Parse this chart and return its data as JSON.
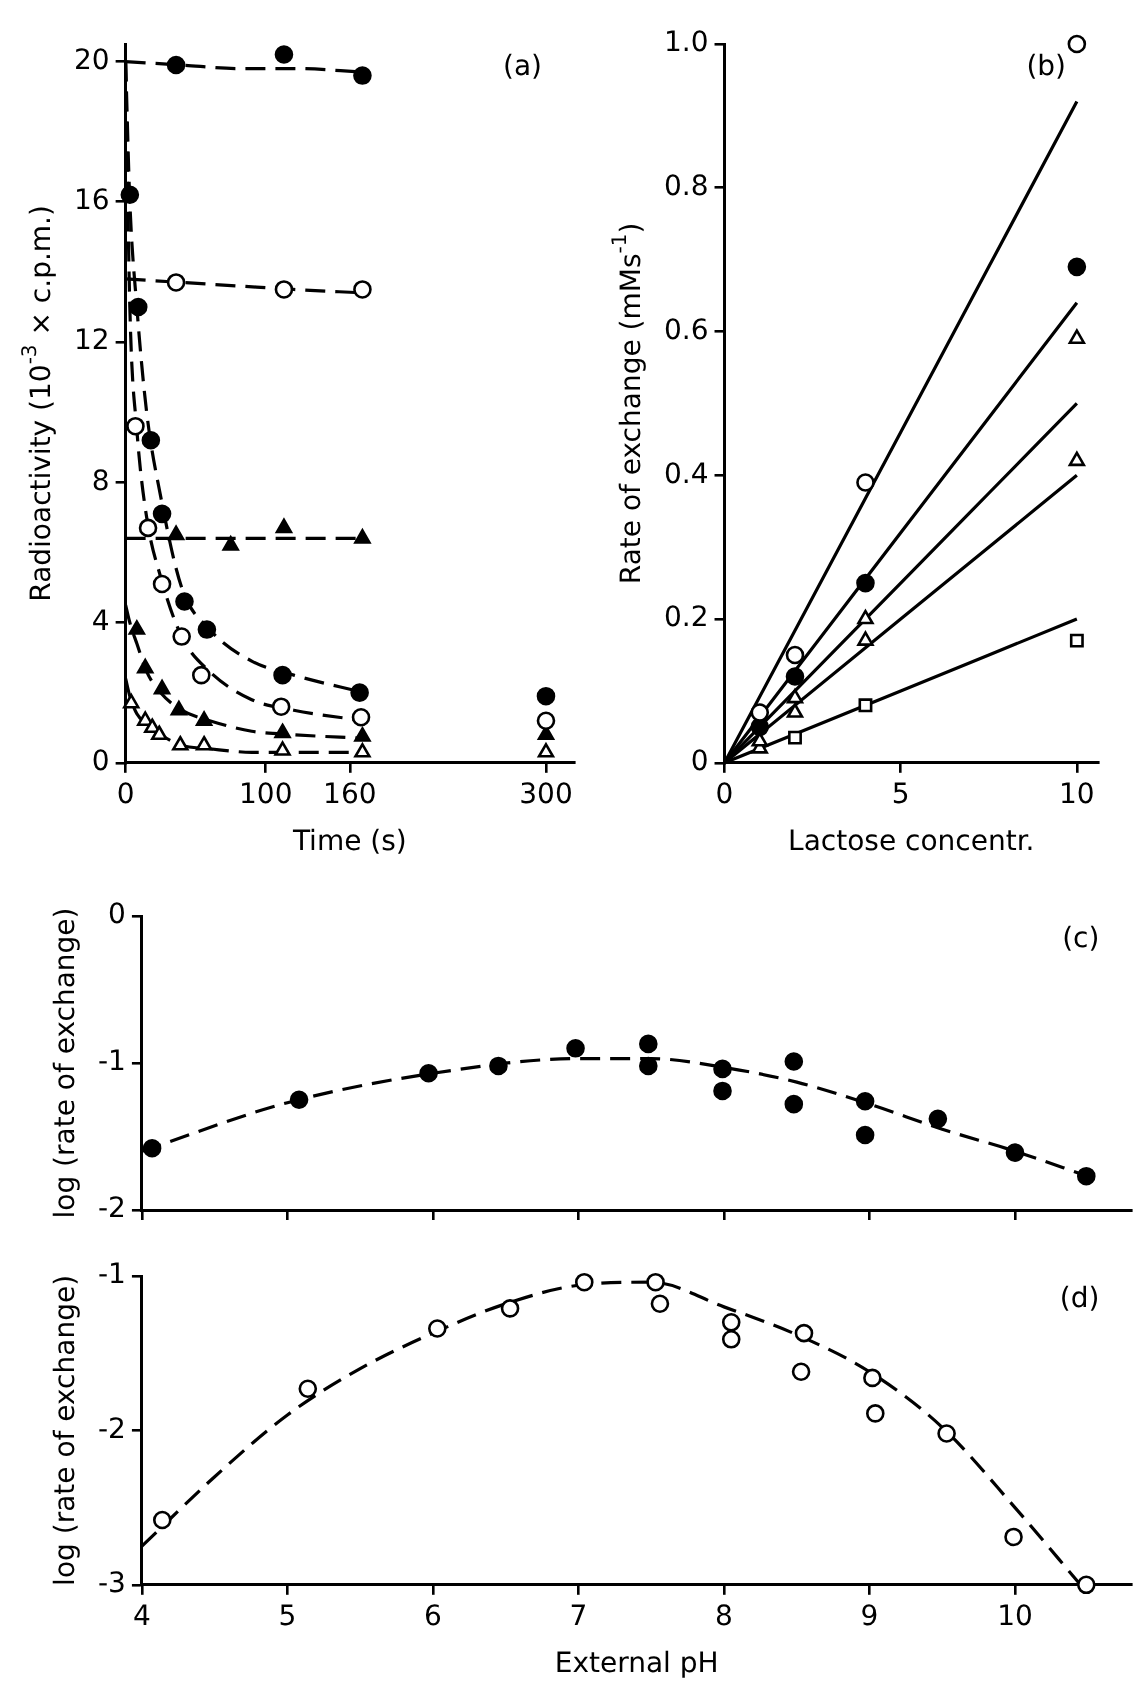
{
  "chart_data": [
    {
      "type": "scatter",
      "xlabel": "Time (s)",
      "ylabel": "Radioactivity (10$^{-3}$ × c.p.m.)",
      "xlim": [
        0,
        320
      ],
      "ylim": [
        0,
        20.5
      ],
      "xticks": [
        0,
        100,
        160,
        300
      ],
      "yticks": [
        0,
        4,
        8,
        12,
        16,
        20
      ],
      "grid": false,
      "legend": false,
      "annotations": [
        "(a)"
      ],
      "series": [
        {
          "type": "line",
          "color": "#000000",
          "marker": "none",
          "line_style": "dashed",
          "x": [
            0,
            40,
            80,
            120,
            170
          ],
          "values": [
            20,
            19.9,
            19.8,
            19.8,
            19.7
          ]
        },
        {
          "type": "line",
          "color": "#000000",
          "marker": "none",
          "line_style": "dashed",
          "x": [
            0,
            40,
            80,
            120,
            170
          ],
          "values": [
            13.8,
            13.7,
            13.6,
            13.5,
            13.4
          ]
        },
        {
          "type": "line",
          "color": "#000000",
          "marker": "none",
          "line_style": "dashed",
          "x": [
            0,
            40,
            80,
            120,
            170
          ],
          "values": [
            6.4,
            6.4,
            6.4,
            6.4,
            6.4
          ]
        },
        {
          "type": "line",
          "color": "#000000",
          "marker": "none",
          "line_style": "dashed",
          "x": [
            0,
            3,
            8,
            15,
            25,
            40,
            60,
            90,
            120,
            170
          ],
          "values": [
            20,
            16,
            13,
            10,
            7.6,
            5,
            3.8,
            2.9,
            2.5,
            2.0
          ]
        },
        {
          "type": "line",
          "color": "#000000",
          "marker": "none",
          "line_style": "dashed",
          "x": [
            0,
            3,
            8,
            15,
            25,
            40,
            60,
            90,
            120,
            170
          ],
          "values": [
            20,
            13,
            9.5,
            7,
            5.3,
            3.6,
            2.6,
            1.8,
            1.5,
            1.2
          ]
        },
        {
          "type": "line",
          "color": "#000000",
          "marker": "none",
          "line_style": "dashed",
          "x": [
            0,
            3,
            8,
            15,
            25,
            40,
            60,
            90,
            120,
            170
          ],
          "values": [
            4.5,
            4.0,
            3.4,
            2.6,
            2.0,
            1.5,
            1.2,
            0.9,
            0.8,
            0.7
          ]
        },
        {
          "type": "line",
          "color": "#000000",
          "marker": "none",
          "line_style": "dashed",
          "x": [
            0,
            3,
            8,
            15,
            25,
            40,
            60,
            90,
            120,
            170
          ],
          "values": [
            2.4,
            1.9,
            1.4,
            1.1,
            0.8,
            0.5,
            0.4,
            0.3,
            0.3,
            0.3
          ]
        },
        {
          "type": "scatter",
          "color": "#000000",
          "marker": "circle",
          "x": [
            36,
            113,
            169
          ],
          "values": [
            19.9,
            20.2,
            19.6
          ]
        },
        {
          "type": "scatter",
          "color": "#ffffff",
          "marker": "circle",
          "x": [
            36,
            113,
            169
          ],
          "values": [
            13.7,
            13.5,
            13.5
          ]
        },
        {
          "type": "scatter",
          "color": "#000000",
          "marker": "triangle",
          "x": [
            36,
            75,
            113,
            169
          ],
          "values": [
            6.5,
            6.2,
            6.7,
            6.4
          ]
        },
        {
          "type": "scatter",
          "color": "#000000",
          "marker": "circle",
          "x": [
            3,
            9,
            18,
            26,
            42,
            58,
            112,
            167,
            300
          ],
          "values": [
            16.2,
            13.0,
            9.2,
            7.1,
            4.6,
            3.8,
            2.5,
            2.0,
            1.9
          ]
        },
        {
          "type": "scatter",
          "color": "#ffffff",
          "marker": "circle",
          "x": [
            7,
            16,
            26,
            40,
            54,
            111,
            168,
            300
          ],
          "values": [
            9.6,
            6.7,
            5.1,
            3.6,
            2.5,
            1.6,
            1.3,
            1.2
          ]
        },
        {
          "type": "scatter",
          "color": "#000000",
          "marker": "triangle",
          "x": [
            8,
            14,
            26,
            38,
            56,
            112,
            169,
            300
          ],
          "values": [
            3.8,
            2.7,
            2.1,
            1.5,
            1.2,
            0.85,
            0.75,
            0.8
          ]
        },
        {
          "type": "scatter",
          "color": "#ffffff",
          "marker": "triangle",
          "x": [
            4,
            14,
            19,
            24,
            39,
            56,
            112,
            169,
            300
          ],
          "values": [
            1.7,
            1.2,
            1.0,
            0.8,
            0.5,
            0.5,
            0.35,
            0.3,
            0.3
          ]
        }
      ]
    },
    {
      "type": "scatter",
      "xlabel": "Lactose concentr.",
      "ylabel": "Rate of exchange (mMs$^{-1}$)",
      "xlim": [
        0,
        10.6
      ],
      "ylim": [
        0,
        1.0
      ],
      "xticks": [
        0,
        5,
        10
      ],
      "yticks": [
        0,
        0.2,
        0.4,
        0.6,
        0.8,
        {
          "value": 1.0,
          "label": "1.0"
        }
      ],
      "grid": false,
      "legend": false,
      "annotations": [
        "(b)"
      ],
      "series": [
        {
          "type": "line",
          "color": "#000000",
          "marker": "none",
          "line_style": "solid",
          "x": [
            0,
            5,
            10
          ],
          "values": [
            0,
            0.46,
            0.92
          ]
        },
        {
          "type": "line",
          "color": "#000000",
          "marker": "none",
          "line_style": "solid",
          "x": [
            0,
            5,
            10
          ],
          "values": [
            0,
            0.32,
            0.64
          ]
        },
        {
          "type": "line",
          "color": "#000000",
          "marker": "none",
          "line_style": "solid",
          "x": [
            0,
            5,
            10
          ],
          "values": [
            0,
            0.25,
            0.5
          ]
        },
        {
          "type": "line",
          "color": "#000000",
          "marker": "none",
          "line_style": "solid",
          "x": [
            0,
            5,
            10
          ],
          "values": [
            0,
            0.2,
            0.4
          ]
        },
        {
          "type": "line",
          "color": "#000000",
          "marker": "none",
          "line_style": "solid",
          "x": [
            0,
            5,
            10
          ],
          "values": [
            0,
            0.1,
            0.2
          ]
        },
        {
          "type": "scatter",
          "color": "#ffffff",
          "marker": "circle",
          "x": [
            1,
            2,
            4,
            10
          ],
          "values": [
            0.07,
            0.15,
            0.39,
            1.0
          ]
        },
        {
          "type": "scatter",
          "color": "#000000",
          "marker": "circle",
          "x": [
            1,
            2,
            4,
            10
          ],
          "values": [
            0.05,
            0.12,
            0.25,
            0.69
          ]
        },
        {
          "type": "scatter",
          "color": "#ffffff",
          "marker": "triangle",
          "x": [
            1,
            2,
            4,
            10
          ],
          "values": [
            0.03,
            0.09,
            0.2,
            0.59
          ]
        },
        {
          "type": "scatter",
          "color": "#ffffff",
          "marker": "triangle",
          "x": [
            1,
            2,
            4,
            10
          ],
          "values": [
            0.02,
            0.07,
            0.17,
            0.42
          ]
        },
        {
          "type": "scatter",
          "color": "#ffffff",
          "marker": "square",
          "x": [
            2,
            4,
            10
          ],
          "values": [
            0.035,
            0.08,
            0.17
          ]
        }
      ]
    },
    {
      "type": "scatter",
      "ylabel": "log (rate of exchange)",
      "xlim": [
        4,
        10.8
      ],
      "ylim": [
        -2,
        0
      ],
      "xticks": [
        4,
        5,
        6,
        7,
        8,
        9,
        10
      ],
      "yticks": [
        0,
        -1,
        -2
      ],
      "grid": false,
      "legend": false,
      "tick_labels": "y",
      "annotations": [
        "(c)"
      ],
      "series": [
        {
          "type": "line",
          "color": "#000000",
          "marker": "none",
          "line_style": "dashed",
          "x": [
            4,
            5,
            6,
            7,
            7.5,
            8,
            8.5,
            9,
            9.5,
            10,
            10.5
          ],
          "values": [
            -1.6,
            -1.27,
            -1.07,
            -0.97,
            -0.97,
            -1.03,
            -1.13,
            -1.28,
            -1.45,
            -1.6,
            -1.77
          ]
        },
        {
          "type": "scatter",
          "color": "#000000",
          "marker": "circle",
          "x": [
            4.07,
            5.08,
            5.97,
            6.45,
            6.98,
            7.48,
            7.48,
            7.99,
            7.99,
            8.48,
            8.48,
            8.97,
            8.97,
            9.47,
            10.0,
            10.49
          ],
          "values": [
            -1.58,
            -1.25,
            -1.07,
            -1.02,
            -0.9,
            -0.87,
            -1.02,
            -1.04,
            -1.19,
            -0.99,
            -1.28,
            -1.26,
            -1.49,
            -1.38,
            -1.61,
            -1.77
          ]
        }
      ]
    },
    {
      "type": "scatter",
      "xlabel": "External pH",
      "ylabel": "log (rate of exchange)",
      "xlim": [
        4,
        10.8
      ],
      "ylim": [
        -3,
        -1
      ],
      "xticks": [
        4,
        5,
        6,
        7,
        8,
        9,
        10
      ],
      "yticks": [
        -1,
        -2,
        -3
      ],
      "grid": false,
      "legend": false,
      "annotations": [
        "(d)"
      ],
      "series": [
        {
          "type": "line",
          "color": "#000000",
          "marker": "none",
          "line_style": "dashed",
          "x": [
            4,
            4.5,
            5,
            5.5,
            6,
            6.5,
            7,
            7.5,
            8,
            8.5,
            9,
            9.5,
            10,
            10.45
          ],
          "values": [
            -2.75,
            -2.3,
            -1.9,
            -1.6,
            -1.37,
            -1.18,
            -1.06,
            -1.04,
            -1.2,
            -1.38,
            -1.62,
            -1.98,
            -2.5,
            -3.0
          ]
        },
        {
          "type": "scatter",
          "color": "#ffffff",
          "marker": "circle",
          "x": [
            4.14,
            5.14,
            6.03,
            6.53,
            7.04,
            7.53,
            7.56,
            8.05,
            8.05,
            8.55,
            8.53,
            9.02,
            9.04,
            9.53,
            9.99,
            10.49
          ],
          "values": [
            -2.58,
            -1.73,
            -1.34,
            -1.21,
            -1.04,
            -1.04,
            -1.18,
            -1.3,
            -1.41,
            -1.37,
            -1.62,
            -1.66,
            -1.89,
            -2.02,
            -2.69,
            -3.0
          ]
        }
      ]
    }
  ]
}
